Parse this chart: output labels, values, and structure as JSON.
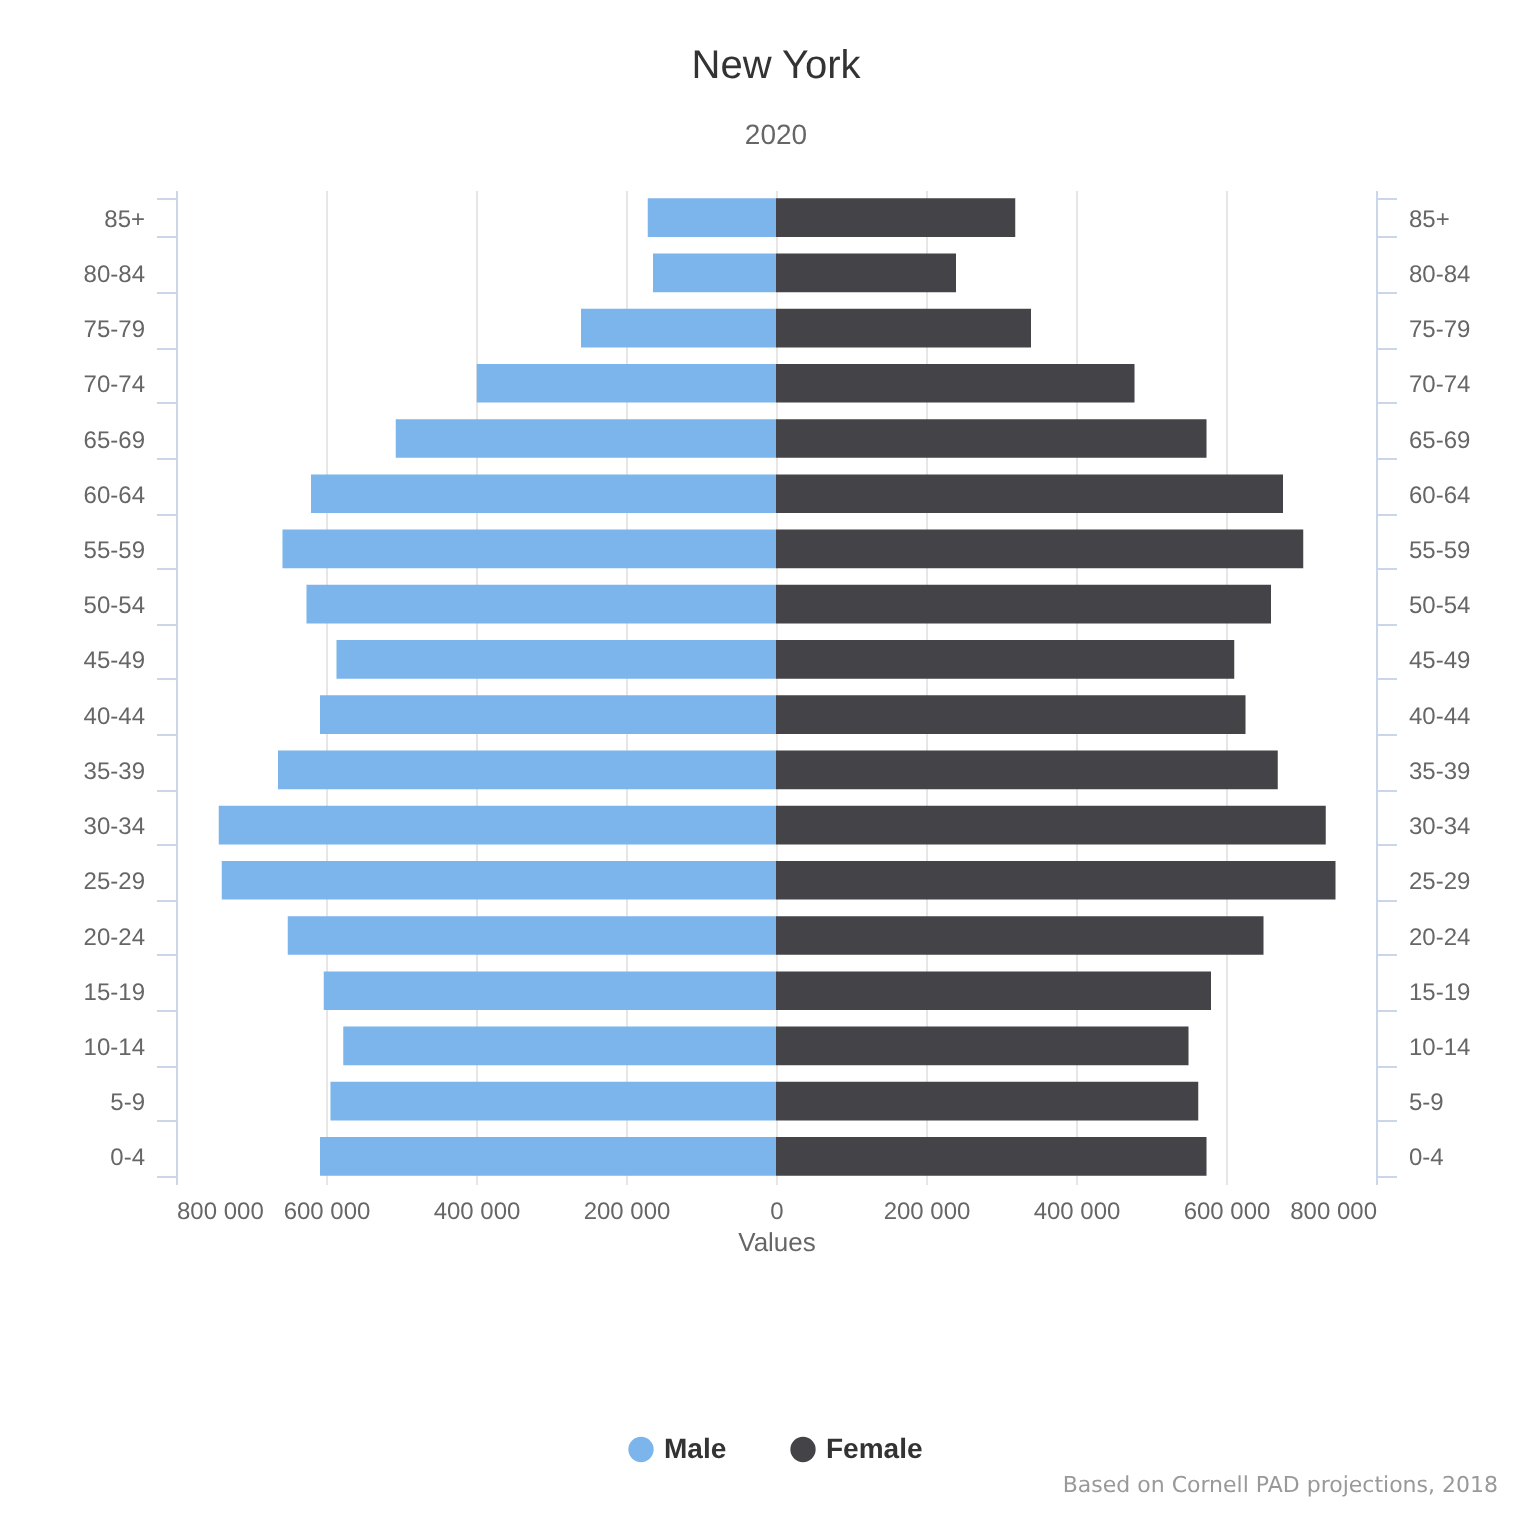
{
  "chart_data": {
    "type": "bar",
    "orientation": "horizontal",
    "stacked": true,
    "title": "New York",
    "subtitle": "2020",
    "xlabel": "Values",
    "categories": [
      "85+",
      "80-84",
      "75-79",
      "70-74",
      "65-69",
      "60-64",
      "55-59",
      "50-54",
      "45-49",
      "40-44",
      "35-39",
      "30-34",
      "25-29",
      "20-24",
      "15-19",
      "10-14",
      "5-9",
      "0-4"
    ],
    "series": [
      {
        "name": "Male",
        "color": "#7cb5ec",
        "values": [
          -171000,
          -164000,
          -260000,
          -399000,
          -507000,
          -620000,
          -658000,
          -626000,
          -586000,
          -608000,
          -664000,
          -743000,
          -739000,
          -651000,
          -603000,
          -577000,
          -594000,
          -608000
        ]
      },
      {
        "name": "Female",
        "color": "#434348",
        "values": [
          319000,
          240000,
          340000,
          478000,
          574000,
          676000,
          703000,
          660000,
          611000,
          626000,
          669000,
          733000,
          746000,
          650000,
          580000,
          550000,
          563000,
          574000
        ]
      }
    ],
    "xlim": [
      -800000,
      800000
    ],
    "xticks": [
      {
        "value": -800000,
        "label": "800 000"
      },
      {
        "value": -600000,
        "label": "600 000"
      },
      {
        "value": -400000,
        "label": "400 000"
      },
      {
        "value": -200000,
        "label": "200 000"
      },
      0,
      {
        "value": 200000,
        "label": "200 000"
      },
      {
        "value": 400000,
        "label": "400 000"
      },
      {
        "value": 600000,
        "label": "600 000"
      },
      {
        "value": 800000,
        "label": "800 000"
      }
    ],
    "grid": "x",
    "legend": "bottom",
    "annotations": [
      "Based on Cornell PAD projections, 2018"
    ]
  }
}
